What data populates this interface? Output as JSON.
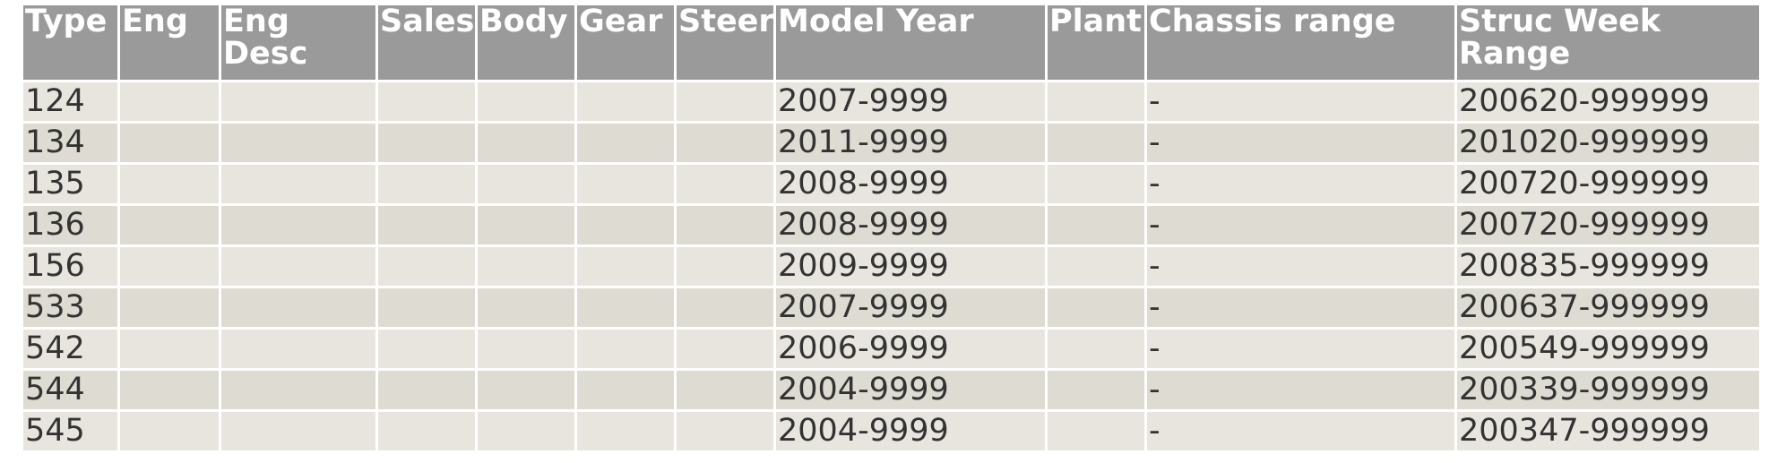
{
  "table": {
    "columns": [
      {
        "key": "type",
        "label": "Type"
      },
      {
        "key": "eng",
        "label": "Eng"
      },
      {
        "key": "eng_desc",
        "label": "Eng Desc"
      },
      {
        "key": "sales",
        "label": "Sales"
      },
      {
        "key": "body",
        "label": "Body"
      },
      {
        "key": "gear",
        "label": "Gear"
      },
      {
        "key": "steer",
        "label": "Steer"
      },
      {
        "key": "model_year",
        "label": "Model Year"
      },
      {
        "key": "plant",
        "label": "Plant"
      },
      {
        "key": "chassis_range",
        "label": "Chassis range"
      },
      {
        "key": "struc_week_range",
        "label": "Struc Week Range"
      }
    ],
    "rows": [
      {
        "type": "124",
        "eng": "",
        "eng_desc": "",
        "sales": "",
        "body": "",
        "gear": "",
        "steer": "",
        "model_year": "2007-9999",
        "plant": "",
        "chassis_range": "-",
        "struc_week_range": "200620-999999"
      },
      {
        "type": "134",
        "eng": "",
        "eng_desc": "",
        "sales": "",
        "body": "",
        "gear": "",
        "steer": "",
        "model_year": "2011-9999",
        "plant": "",
        "chassis_range": "-",
        "struc_week_range": "201020-999999"
      },
      {
        "type": "135",
        "eng": "",
        "eng_desc": "",
        "sales": "",
        "body": "",
        "gear": "",
        "steer": "",
        "model_year": "2008-9999",
        "plant": "",
        "chassis_range": "-",
        "struc_week_range": "200720-999999"
      },
      {
        "type": "136",
        "eng": "",
        "eng_desc": "",
        "sales": "",
        "body": "",
        "gear": "",
        "steer": "",
        "model_year": "2008-9999",
        "plant": "",
        "chassis_range": "-",
        "struc_week_range": "200720-999999"
      },
      {
        "type": "156",
        "eng": "",
        "eng_desc": "",
        "sales": "",
        "body": "",
        "gear": "",
        "steer": "",
        "model_year": "2009-9999",
        "plant": "",
        "chassis_range": "-",
        "struc_week_range": "200835-999999"
      },
      {
        "type": "533",
        "eng": "",
        "eng_desc": "",
        "sales": "",
        "body": "",
        "gear": "",
        "steer": "",
        "model_year": "2007-9999",
        "plant": "",
        "chassis_range": "-",
        "struc_week_range": "200637-999999"
      },
      {
        "type": "542",
        "eng": "",
        "eng_desc": "",
        "sales": "",
        "body": "",
        "gear": "",
        "steer": "",
        "model_year": "2006-9999",
        "plant": "",
        "chassis_range": "-",
        "struc_week_range": "200549-999999"
      },
      {
        "type": "544",
        "eng": "",
        "eng_desc": "",
        "sales": "",
        "body": "",
        "gear": "",
        "steer": "",
        "model_year": "2004-9999",
        "plant": "",
        "chassis_range": "-",
        "struc_week_range": "200339-999999"
      },
      {
        "type": "545",
        "eng": "",
        "eng_desc": "",
        "sales": "",
        "body": "",
        "gear": "",
        "steer": "",
        "model_year": "2004-9999",
        "plant": "",
        "chassis_range": "-",
        "struc_week_range": "200347-999999"
      }
    ]
  }
}
